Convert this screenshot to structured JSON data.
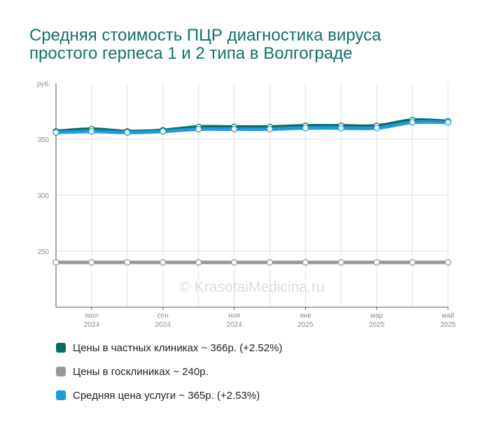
{
  "title_lines": [
    "Средняя стоимость ПЦР диагностика вируса",
    "простого герпеса 1 и 2 типа в Волгограде"
  ],
  "watermark": "© KrasotaiMedicina.ru",
  "chart_data": {
    "type": "line",
    "title": "Средняя стоимость ПЦР диагностика вируса простого герпеса 1 и 2 типа в Волгограде",
    "ylabel": "руб.",
    "ylim": [
      200,
      400
    ],
    "y_ticks": [
      250,
      300,
      350
    ],
    "x": [
      "2024-06",
      "2024-07",
      "2024-08",
      "2024-09",
      "2024-10",
      "2024-11",
      "2024-12",
      "2025-01",
      "2025-02",
      "2025-03",
      "2025-04",
      "2025-05"
    ],
    "x_tick_labels": [
      {
        "index": 1,
        "month": "июл",
        "year": "2024"
      },
      {
        "index": 3,
        "month": "сен",
        "year": "2024"
      },
      {
        "index": 5,
        "month": "ноя",
        "year": "2024"
      },
      {
        "index": 7,
        "month": "янв",
        "year": "2025"
      },
      {
        "index": 9,
        "month": "мар",
        "year": "2025"
      },
      {
        "index": 11,
        "month": "май",
        "year": "2025"
      }
    ],
    "grid": true,
    "legend_position": "bottom",
    "series": [
      {
        "name": "Цены в частных клиниках",
        "color": "#0b6b62",
        "values": [
          357,
          359,
          357,
          358,
          361,
          361,
          361,
          362,
          362,
          362,
          367,
          366
        ]
      },
      {
        "name": "Цены в госклиниках",
        "color": "#999999",
        "values": [
          240,
          240,
          240,
          240,
          240,
          240,
          240,
          240,
          240,
          240,
          240,
          240
        ]
      },
      {
        "name": "Средняя цена услуги",
        "color": "#1e9be0",
        "values": [
          356,
          357,
          356,
          357,
          359,
          359,
          359,
          360,
          360,
          360,
          365,
          365
        ]
      }
    ]
  },
  "legend": [
    {
      "text": "Цены в частных клиниках ~ 366р. (+2.52%)",
      "color": "#0b6b62"
    },
    {
      "text": "Цены в госклиниках ~ 240р.",
      "color": "#999999"
    },
    {
      "text": "Средняя цена услуги ~ 365р. (+2.53%)",
      "color": "#1e9be0"
    }
  ]
}
